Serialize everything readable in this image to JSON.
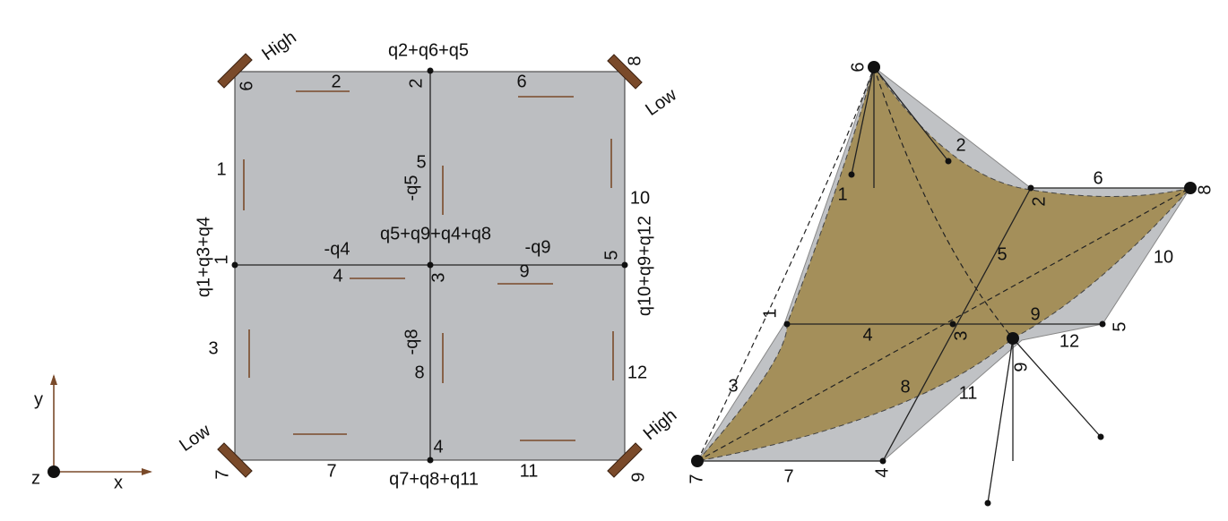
{
  "plan": {
    "corner_labels": [
      "High",
      "Low",
      "Low",
      "High"
    ],
    "node_loads": [
      "q2+q6+q5",
      "q1+q3+q4",
      "q5+q9+q4+q8",
      "q10+q9+q12",
      "q7+q8+q11"
    ],
    "flows": [
      "-q5",
      "-q4",
      "-q9",
      "-q8"
    ],
    "node_numbers": [
      "1",
      "2",
      "3",
      "4",
      "5",
      "6",
      "7",
      "8",
      "9"
    ],
    "edge_numbers": [
      "1",
      "2",
      "3",
      "4",
      "5",
      "6",
      "7",
      "8",
      "9",
      "10",
      "11",
      "12"
    ]
  },
  "axes": {
    "x": "x",
    "y": "y",
    "z": "z"
  },
  "surface": {
    "node_numbers": [
      "1",
      "2",
      "3",
      "4",
      "5",
      "6",
      "7",
      "8",
      "9"
    ],
    "edge_numbers": [
      "1",
      "2",
      "3",
      "4",
      "5",
      "6",
      "7",
      "8",
      "9",
      "10",
      "11",
      "12"
    ]
  }
}
